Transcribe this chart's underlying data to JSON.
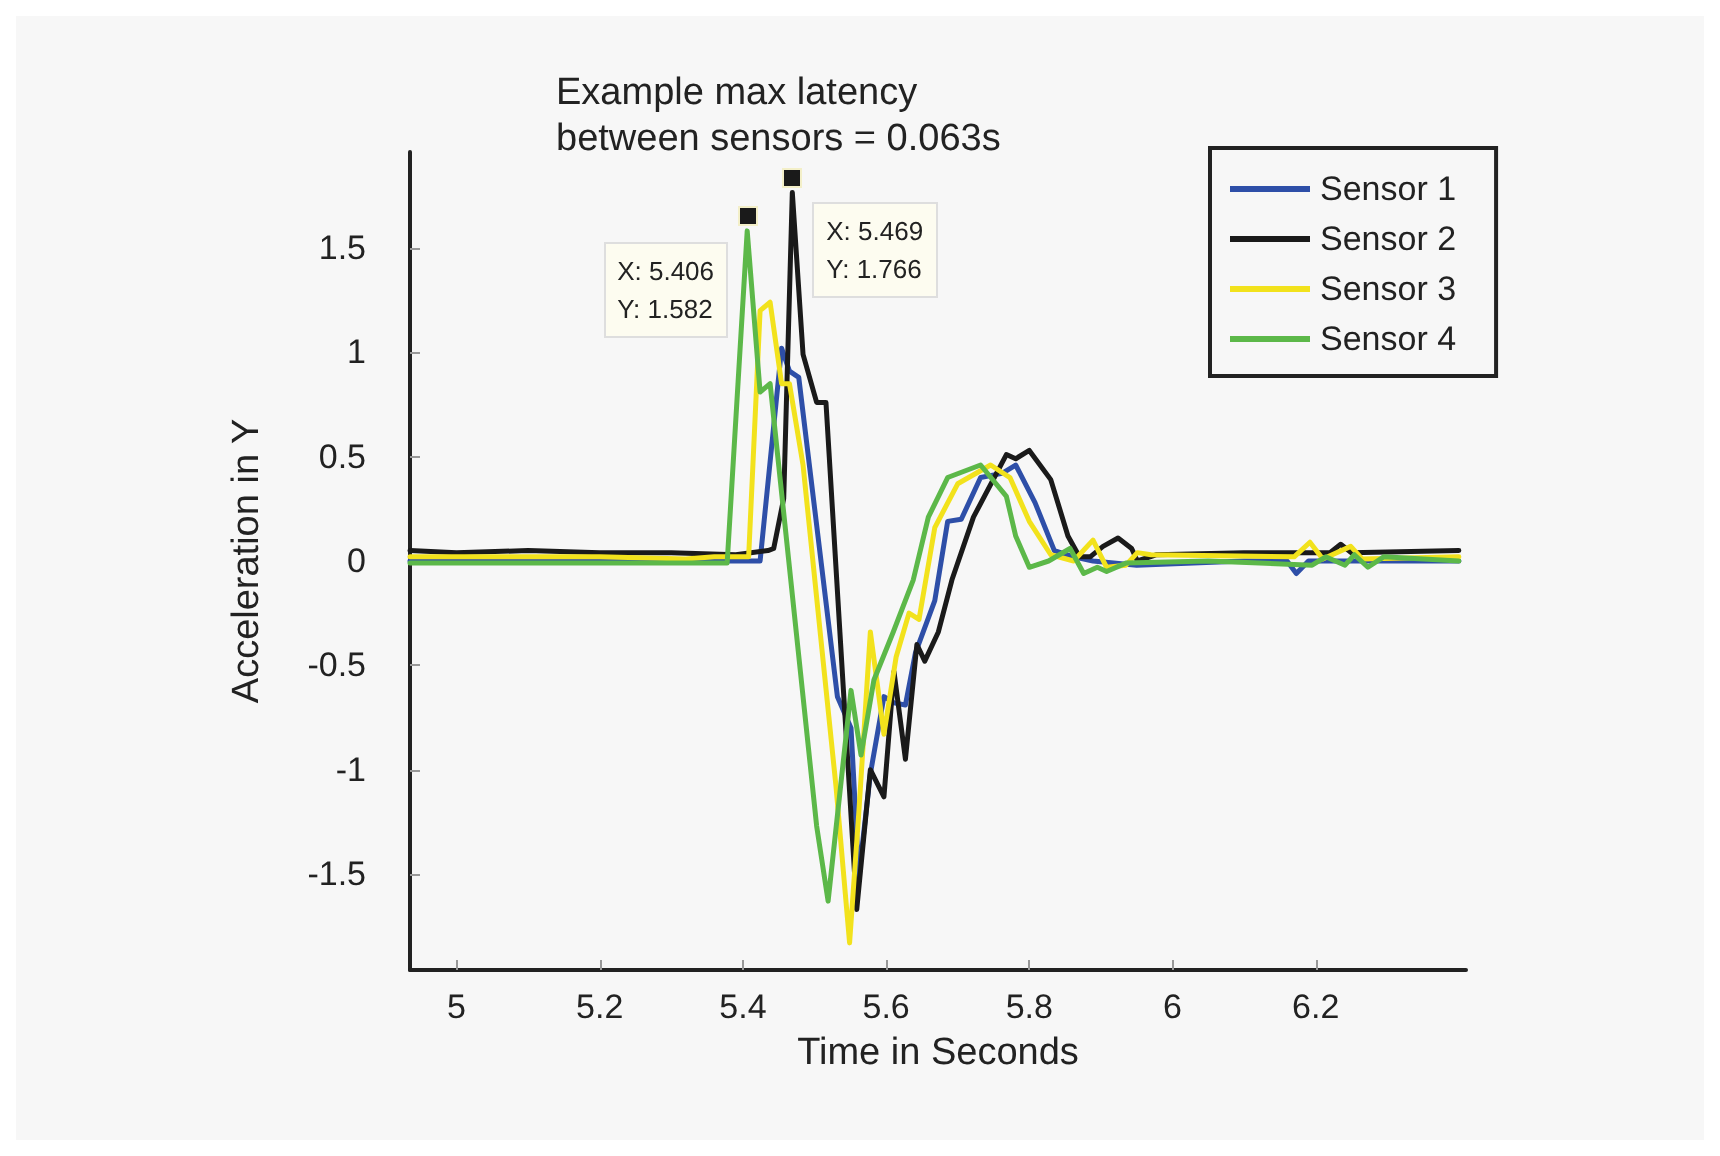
{
  "chart_data": {
    "type": "line",
    "title": "Example max latency\nbetween sensors = 0.063s",
    "xlabel": "Time in Seconds",
    "ylabel": "Acceleration in Y",
    "xlim": [
      4.935,
      6.41
    ],
    "xticks": [
      5,
      5.2,
      5.4,
      5.6,
      5.8,
      6,
      6.2
    ],
    "ylim": [
      -1.96,
      1.96
    ],
    "yticks": [
      -1.5,
      -1,
      -0.5,
      0,
      0.5,
      1,
      1.5
    ],
    "grid": false,
    "legend": "top right",
    "marker": "none",
    "line_style": "solid",
    "annotations": [
      {
        "text": "X: 5.406\nY: 1.582",
        "x": 5.406,
        "y": 1.582
      },
      {
        "text": "X: 5.469\nY: 1.766",
        "x": 5.469,
        "y": 1.766
      }
    ],
    "series": [
      {
        "name": "Sensor 1",
        "color": "#2e4fa8",
        "x": [
          4.935,
          5.2,
          5.424,
          5.454,
          5.465,
          5.478,
          5.532,
          5.551,
          5.562,
          5.578,
          5.597,
          5.611,
          5.627,
          5.641,
          5.668,
          5.686,
          5.705,
          5.732,
          5.762,
          5.781,
          5.808,
          5.835,
          5.862,
          5.889,
          5.95,
          6.1,
          6.16,
          6.173,
          6.19,
          6.4
        ],
        "values": [
          0,
          0,
          0,
          1.02,
          0.91,
          0.88,
          -0.65,
          -0.8,
          -1.51,
          -1.02,
          -0.65,
          -0.68,
          -0.69,
          -0.44,
          -0.19,
          0.19,
          0.2,
          0.4,
          0.42,
          0.46,
          0.28,
          0.05,
          0.02,
          0,
          -0.02,
          0,
          0,
          -0.06,
          0,
          0
        ]
      },
      {
        "name": "Sensor 2",
        "color": "#1a1a1a",
        "x": [
          4.935,
          5.0,
          5.1,
          5.2,
          5.3,
          5.39,
          5.435,
          5.443,
          5.457,
          5.469,
          5.484,
          5.503,
          5.516,
          5.559,
          5.578,
          5.597,
          5.611,
          5.627,
          5.643,
          5.654,
          5.673,
          5.692,
          5.722,
          5.768,
          5.781,
          5.8,
          5.83,
          5.854,
          5.87,
          5.885,
          5.903,
          5.924,
          5.943,
          5.951,
          5.978,
          6.1,
          6.22,
          6.235,
          6.25,
          6.4
        ],
        "values": [
          0.05,
          0.04,
          0.05,
          0.04,
          0.04,
          0.03,
          0.05,
          0.06,
          0.3,
          1.766,
          0.99,
          0.76,
          0.76,
          -1.67,
          -1.0,
          -1.13,
          -0.53,
          -0.95,
          -0.4,
          -0.48,
          -0.34,
          -0.09,
          0.21,
          0.51,
          0.49,
          0.53,
          0.39,
          0.12,
          0.02,
          0.02,
          0.07,
          0.11,
          0.06,
          0,
          0.03,
          0.04,
          0.04,
          0.08,
          0.04,
          0.05
        ]
      },
      {
        "name": "Sensor 3",
        "color": "#f2e21c",
        "x": [
          4.935,
          5.2,
          5.32,
          5.36,
          5.408,
          5.424,
          5.438,
          5.454,
          5.465,
          5.484,
          5.53,
          5.549,
          5.562,
          5.578,
          5.597,
          5.614,
          5.632,
          5.646,
          5.668,
          5.7,
          5.746,
          5.773,
          5.8,
          5.83,
          5.862,
          5.889,
          5.908,
          5.935,
          5.951,
          5.97,
          6.17,
          6.192,
          6.21,
          6.249,
          6.265,
          6.4
        ],
        "values": [
          0.02,
          0.02,
          0.01,
          0.02,
          0.02,
          1.2,
          1.24,
          0.85,
          0.85,
          0.46,
          -1.08,
          -1.83,
          -1.2,
          -0.34,
          -0.83,
          -0.46,
          -0.25,
          -0.28,
          0.16,
          0.37,
          0.46,
          0.4,
          0.19,
          0.03,
          0,
          0.1,
          -0.03,
          -0.02,
          0.04,
          0.03,
          0.02,
          0.09,
          0.01,
          0.07,
          0.01,
          0.02
        ]
      },
      {
        "name": "Sensor 4",
        "color": "#5cb849",
        "x": [
          4.935,
          5.1,
          5.25,
          5.378,
          5.406,
          5.424,
          5.438,
          5.503,
          5.519,
          5.551,
          5.565,
          5.583,
          5.61,
          5.638,
          5.659,
          5.686,
          5.732,
          5.768,
          5.781,
          5.8,
          5.827,
          5.857,
          5.876,
          5.895,
          5.908,
          5.935,
          6.05,
          6.195,
          6.214,
          6.241,
          6.254,
          6.273,
          6.295,
          6.4
        ],
        "values": [
          -0.01,
          -0.01,
          -0.01,
          -0.01,
          1.582,
          0.81,
          0.85,
          -1.27,
          -1.63,
          -0.62,
          -0.93,
          -0.57,
          -0.34,
          -0.09,
          0.21,
          0.4,
          0.46,
          0.31,
          0.12,
          -0.03,
          0,
          0.06,
          -0.06,
          -0.03,
          -0.05,
          -0.01,
          0,
          -0.02,
          0.02,
          -0.02,
          0.03,
          -0.03,
          0.02,
          0
        ]
      }
    ]
  }
}
